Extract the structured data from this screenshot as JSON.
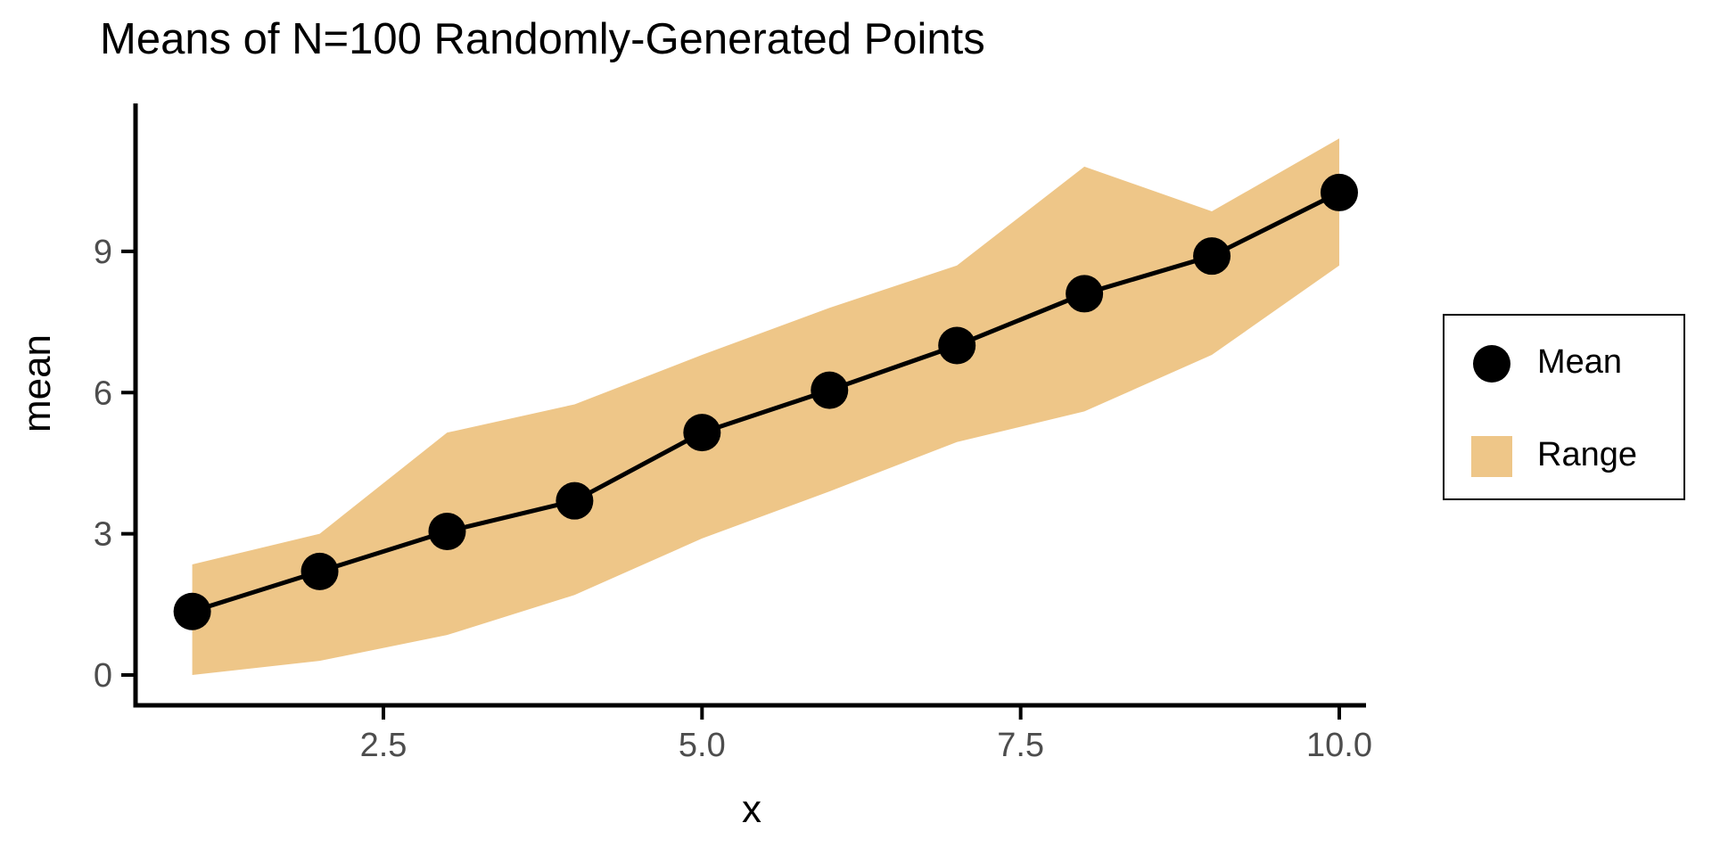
{
  "chart_data": {
    "type": "line",
    "title": "Means of N=100 Randomly-Generated Points",
    "xlabel": "x",
    "ylabel": "mean",
    "x": [
      1,
      2,
      3,
      4,
      5,
      6,
      7,
      8,
      9,
      10
    ],
    "series": [
      {
        "name": "Mean",
        "type": "line+points",
        "color": "#000000",
        "values": [
          1.35,
          2.2,
          3.05,
          3.7,
          5.15,
          6.05,
          7.0,
          8.1,
          8.9,
          10.25
        ]
      },
      {
        "name": "Range",
        "type": "ribbon",
        "color": "#EEC688",
        "min": [
          0.0,
          0.3,
          0.85,
          1.7,
          2.9,
          3.9,
          4.95,
          5.6,
          6.8,
          8.7
        ],
        "max": [
          2.35,
          3.0,
          5.15,
          5.75,
          6.8,
          7.8,
          8.7,
          10.8,
          9.85,
          11.4
        ]
      }
    ],
    "x_ticks": [
      {
        "value": 2.5,
        "label": "2.5"
      },
      {
        "value": 5.0,
        "label": "5.0"
      },
      {
        "value": 7.5,
        "label": "7.5"
      },
      {
        "value": 10.0,
        "label": "10.0"
      }
    ],
    "y_ticks": [
      {
        "value": 0,
        "label": "0"
      },
      {
        "value": 3,
        "label": "3"
      },
      {
        "value": 6,
        "label": "6"
      },
      {
        "value": 9,
        "label": "9"
      }
    ],
    "xlim": [
      0.555,
      10.196
    ],
    "ylim": [
      -0.644,
      12.105
    ],
    "grid": false,
    "colors": {
      "axis": "#000000",
      "tick_label": "#4D4D4D",
      "text": "#000000"
    },
    "legend": {
      "position": "right",
      "items": [
        {
          "label": "Mean",
          "marker": "circle",
          "color": "#000000"
        },
        {
          "label": "Range",
          "marker": "square",
          "color": "#EEC688"
        }
      ]
    }
  }
}
